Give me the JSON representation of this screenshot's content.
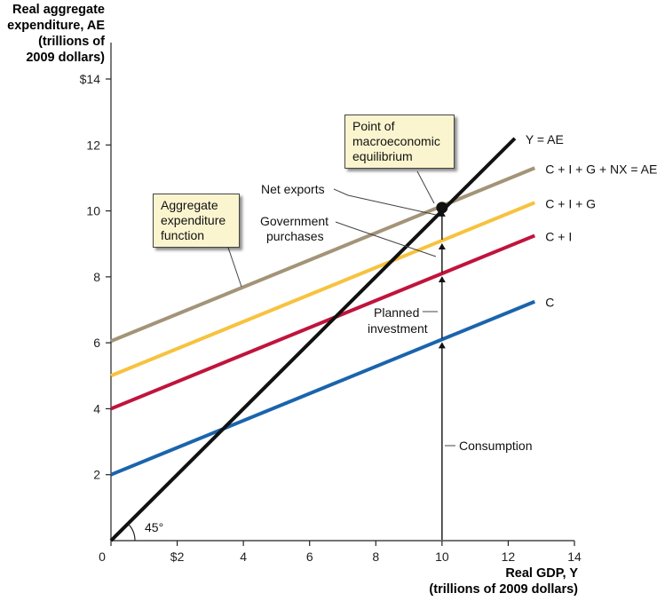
{
  "chart_data": {
    "type": "line",
    "y_title": [
      "Real aggregate",
      "expenditure, AE",
      "(trillions of",
      "2009 dollars)"
    ],
    "x_title": [
      "Real GDP, Y",
      "(trillions of 2009 dollars)"
    ],
    "xlim": [
      0,
      14
    ],
    "ylim": [
      0,
      14
    ],
    "x_ticks": [
      0,
      2,
      4,
      6,
      8,
      10,
      12,
      14
    ],
    "x_tick_labels": [
      "0",
      "$2",
      "4",
      "6",
      "8",
      "10",
      "12",
      "14"
    ],
    "y_ticks": [
      2,
      4,
      6,
      8,
      10,
      12,
      14
    ],
    "y_tick_labels": [
      "2",
      "4",
      "6",
      "8",
      "10",
      "12",
      "$14"
    ],
    "grid": false,
    "series": [
      {
        "name": "C",
        "x": [
          0,
          12.8
        ],
        "y": [
          2.0,
          7.25
        ],
        "color": "#1a64ad"
      },
      {
        "name": "C + I",
        "x": [
          0,
          12.8
        ],
        "y": [
          4.0,
          9.25
        ],
        "color": "#c0143c"
      },
      {
        "name": "C + I + G",
        "x": [
          0,
          12.8
        ],
        "y": [
          5.0,
          10.25
        ],
        "color": "#f7c23e"
      },
      {
        "name": "C + I + G + NX = AE",
        "x": [
          0,
          12.8
        ],
        "y": [
          6.05,
          11.3
        ],
        "color": "#a39478"
      },
      {
        "name": "Y = AE",
        "x": [
          0,
          12.2
        ],
        "y": [
          0,
          12.2
        ],
        "color": "#111111"
      }
    ],
    "equilibrium": {
      "x": 10,
      "y": 10.1
    },
    "annotations": {
      "angle": "45°",
      "aggregate_expenditure_function": [
        "Aggregate",
        "expenditure",
        "function"
      ],
      "point_of_equilibrium": [
        "Point of",
        "macroeconomic",
        "equilibrium"
      ],
      "net_exports": "Net exports",
      "government_purchases": [
        "Government",
        "purchases"
      ],
      "planned_investment": [
        "Planned",
        "investment"
      ],
      "consumption": "Consumption"
    }
  }
}
